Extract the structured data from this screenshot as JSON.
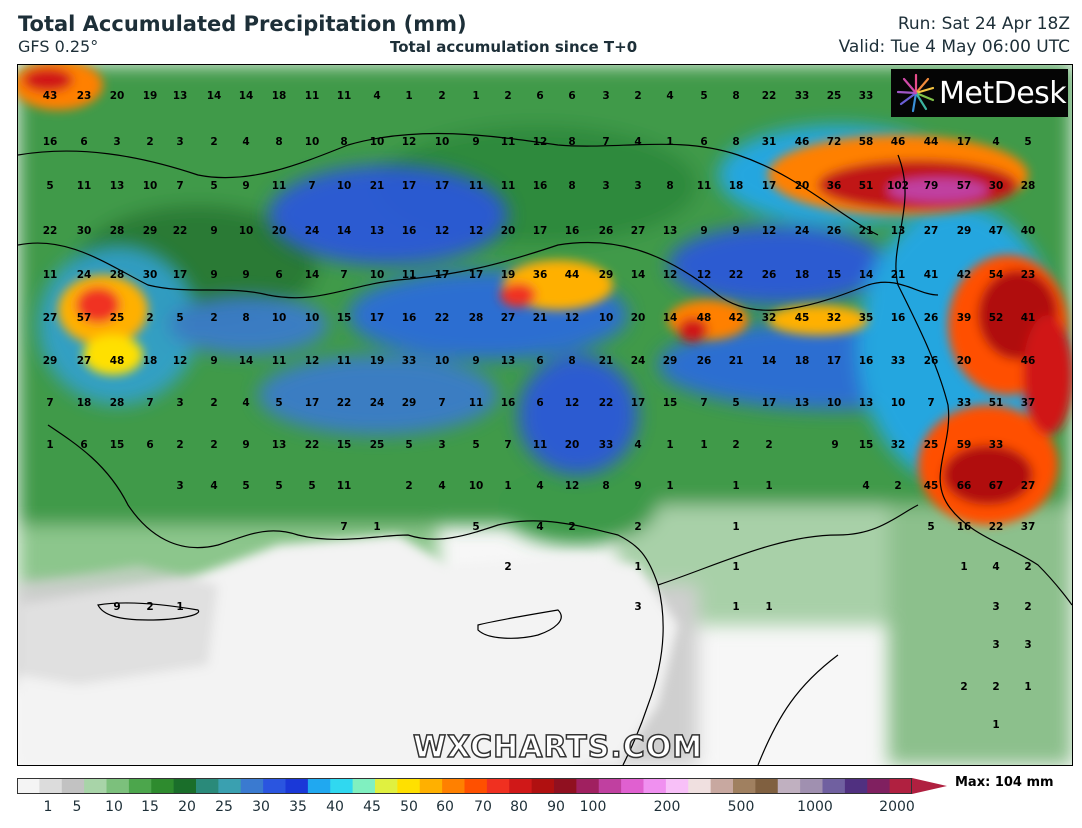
{
  "header": {
    "title": "Total Accumulated Precipitation (mm)",
    "model": "GFS 0.25°",
    "subtitle": "Total accumulation since T+0",
    "run": "Run: Sat 24 Apr 18Z",
    "valid": "Valid: Tue 4 May 06:00 UTC"
  },
  "logo": {
    "text": "MetDesk",
    "icon": "metdesk-starburst-icon"
  },
  "watermark": "WXCHARTS.COM",
  "legend": {
    "ticks": [
      "1",
      "5",
      "10",
      "15",
      "20",
      "25",
      "30",
      "35",
      "40",
      "45",
      "50",
      "60",
      "70",
      "80",
      "90",
      "100",
      "200",
      "500",
      "1000",
      "2000"
    ],
    "max_label": "Max: 104 mm",
    "colors": [
      "#f4f4f4",
      "#dcdcdc",
      "#c2c2c2",
      "#a8d4a8",
      "#7cc07c",
      "#4ca64c",
      "#2e8b2e",
      "#1a6e2a",
      "#2a8a7a",
      "#3aa0b0",
      "#3a7ad0",
      "#2a55e0",
      "#1a38d8",
      "#20a8f0",
      "#30d8f0",
      "#80f0c0",
      "#e0f040",
      "#ffe000",
      "#ffb000",
      "#ff8000",
      "#ff5000",
      "#f03020",
      "#d01818",
      "#b01010",
      "#901020",
      "#a02060",
      "#c040a0",
      "#e060d0",
      "#f090f0",
      "#f8c0f8",
      "#f0e0e0",
      "#c8a8a0",
      "#a08060",
      "#806040",
      "#c0b0c0",
      "#a090b0",
      "#7060a0",
      "#503080",
      "#802060",
      "#b02040"
    ]
  },
  "map": {
    "grid_values": [
      [
        "43",
        "23",
        "20",
        "19",
        "13",
        "14",
        "14",
        "18",
        "11",
        "11",
        "4",
        "1",
        "2",
        "1",
        "2",
        "6",
        "6",
        "3",
        "2",
        "4",
        "5",
        "8",
        "22",
        "33",
        "25",
        "33"
      ],
      [
        "16",
        "6",
        "3",
        "2",
        "3",
        "2",
        "4",
        "8",
        "10",
        "8",
        "10",
        "12",
        "10",
        "9",
        "11",
        "12",
        "8",
        "7",
        "4",
        "1",
        "6",
        "8",
        "31",
        "46",
        "72",
        "58",
        "46",
        "44",
        "17",
        "4",
        "5"
      ],
      [
        "5",
        "11",
        "13",
        "10",
        "7",
        "5",
        "9",
        "11",
        "7",
        "10",
        "21",
        "17",
        "17",
        "11",
        "11",
        "16",
        "8",
        "3",
        "3",
        "8",
        "11",
        "18",
        "17",
        "20",
        "36",
        "51",
        "102",
        "79",
        "57",
        "30",
        "28"
      ],
      [
        "22",
        "30",
        "28",
        "29",
        "22",
        "9",
        "10",
        "20",
        "24",
        "14",
        "13",
        "16",
        "12",
        "12",
        "20",
        "17",
        "16",
        "26",
        "27",
        "13",
        "9",
        "9",
        "12",
        "24",
        "26",
        "21",
        "13",
        "27",
        "29",
        "47",
        "40"
      ],
      [
        "11",
        "24",
        "28",
        "30",
        "17",
        "9",
        "9",
        "6",
        "14",
        "7",
        "10",
        "11",
        "17",
        "17",
        "19",
        "36",
        "44",
        "29",
        "14",
        "12",
        "12",
        "22",
        "26",
        "18",
        "15",
        "14",
        "21",
        "41",
        "42",
        "54",
        "23"
      ],
      [
        "27",
        "57",
        "25",
        "2",
        "5",
        "2",
        "8",
        "10",
        "10",
        "15",
        "17",
        "16",
        "22",
        "28",
        "27",
        "21",
        "12",
        "10",
        "20",
        "14",
        "48",
        "42",
        "32",
        "45",
        "32",
        "35",
        "16",
        "26",
        "39",
        "52",
        "41"
      ],
      [
        "29",
        "27",
        "48",
        "18",
        "12",
        "9",
        "14",
        "11",
        "12",
        "11",
        "19",
        "33",
        "10",
        "9",
        "13",
        "6",
        "8",
        "21",
        "24",
        "29",
        "26",
        "21",
        "14",
        "18",
        "17",
        "16",
        "33",
        "26",
        "20",
        "46"
      ],
      [
        "7",
        "18",
        "28",
        "7",
        "3",
        "2",
        "4",
        "5",
        "17",
        "22",
        "24",
        "29",
        "7",
        "11",
        "16",
        "6",
        "12",
        "22",
        "17",
        "15",
        "7",
        "5",
        "17",
        "13",
        "10",
        "13",
        "10",
        "7",
        "33",
        "51",
        "37"
      ],
      [
        "1",
        "6",
        "15",
        "6",
        "2",
        "2",
        "9",
        "13",
        "22",
        "15",
        "25",
        "5",
        "3",
        "5",
        "7",
        "11",
        "20",
        "33",
        "4",
        "1",
        "1",
        "2",
        "2",
        "9",
        "15",
        "32",
        "25",
        "59",
        "33"
      ],
      [
        "3",
        "4",
        "5",
        "5",
        "5",
        "11",
        "2",
        "4",
        "10",
        "1",
        "4",
        "12",
        "8",
        "9",
        "1",
        "1",
        "1",
        "4",
        "2",
        "45",
        "66",
        "67",
        "27"
      ],
      [
        "7",
        "1",
        "5",
        "4",
        "2",
        "2",
        "1",
        "5",
        "16",
        "22",
        "37"
      ],
      [
        "2",
        "1",
        "1",
        "1",
        "4",
        "2"
      ],
      [
        "9",
        "2",
        "1",
        "3",
        "1",
        "1",
        "3",
        "2"
      ],
      [
        "3",
        "3"
      ],
      [
        "2",
        "2",
        "1"
      ],
      [
        "1"
      ]
    ]
  }
}
